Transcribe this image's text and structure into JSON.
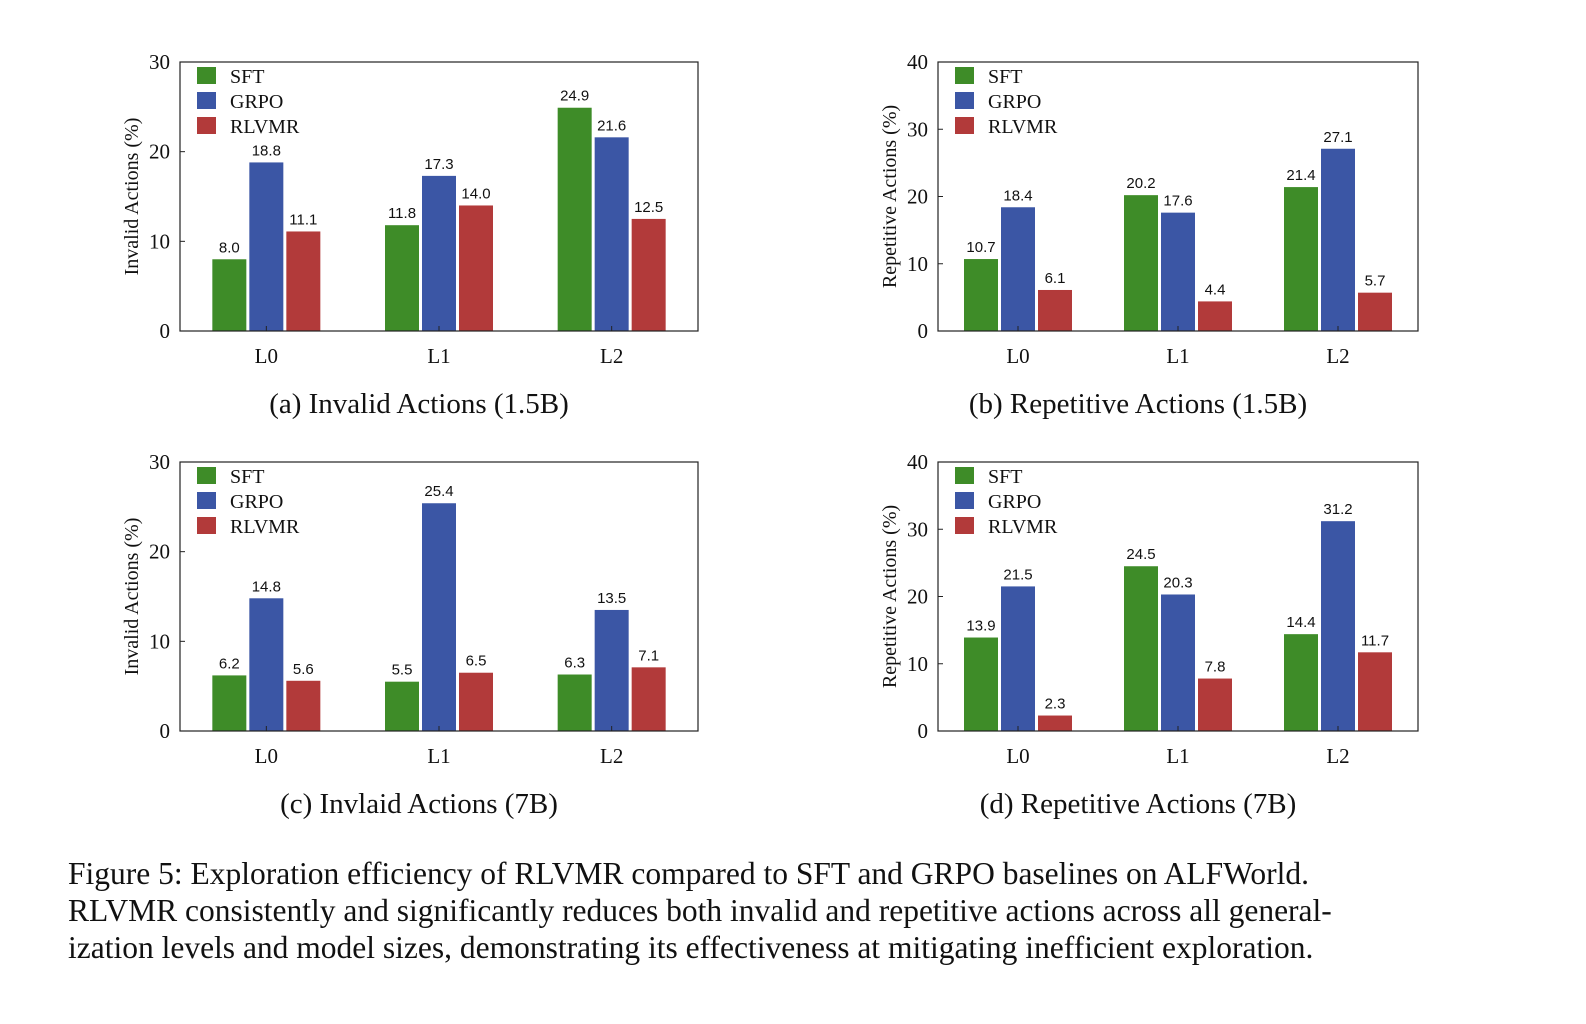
{
  "colors": {
    "SFT": "#3e8c28",
    "GRPO": "#3b56a5",
    "RLVMR": "#b23a3a"
  },
  "chart_data": [
    {
      "type": "bar",
      "categories": [
        "L0",
        "L1",
        "L2"
      ],
      "series": [
        {
          "name": "SFT",
          "values": [
            8.0,
            11.8,
            24.9
          ]
        },
        {
          "name": "GRPO",
          "values": [
            18.8,
            17.3,
            21.6
          ]
        },
        {
          "name": "RLVMR",
          "values": [
            11.1,
            14.0,
            12.5
          ]
        }
      ],
      "value_labels": [
        [
          "8.0",
          "11.8",
          "24.9"
        ],
        [
          "18.8",
          "17.3",
          "21.6"
        ],
        [
          "11.1",
          "14.0",
          "12.5"
        ]
      ],
      "ylabel": "Invalid Actions (%)",
      "ylim": [
        0,
        30
      ],
      "yticks": [
        "0",
        "10",
        "20",
        "30"
      ],
      "legend": "top-left",
      "caption": "(a) Invalid Actions (1.5B)"
    },
    {
      "type": "bar",
      "categories": [
        "L0",
        "L1",
        "L2"
      ],
      "series": [
        {
          "name": "SFT",
          "values": [
            10.7,
            20.2,
            21.4
          ]
        },
        {
          "name": "GRPO",
          "values": [
            18.4,
            17.6,
            27.1
          ]
        },
        {
          "name": "RLVMR",
          "values": [
            6.1,
            4.4,
            5.7
          ]
        }
      ],
      "value_labels": [
        [
          "10.7",
          "20.2",
          "21.4"
        ],
        [
          "18.4",
          "17.6",
          "27.1"
        ],
        [
          "6.1",
          "4.4",
          "5.7"
        ]
      ],
      "ylabel": "Repetitive Actions (%)",
      "ylim": [
        0,
        40
      ],
      "yticks": [
        "0",
        "10",
        "20",
        "30",
        "40"
      ],
      "legend": "top-left",
      "caption": "(b) Repetitive Actions (1.5B)"
    },
    {
      "type": "bar",
      "categories": [
        "L0",
        "L1",
        "L2"
      ],
      "series": [
        {
          "name": "SFT",
          "values": [
            6.2,
            5.5,
            6.3
          ]
        },
        {
          "name": "GRPO",
          "values": [
            14.8,
            25.4,
            13.5
          ]
        },
        {
          "name": "RLVMR",
          "values": [
            5.6,
            6.5,
            7.1
          ]
        }
      ],
      "value_labels": [
        [
          "6.2",
          "5.5",
          "6.3"
        ],
        [
          "14.8",
          "25.4",
          "13.5"
        ],
        [
          "5.6",
          "6.5",
          "7.1"
        ]
      ],
      "ylabel": "Invalid Actions (%)",
      "ylim": [
        0,
        30
      ],
      "yticks": [
        "0",
        "10",
        "20",
        "30"
      ],
      "legend": "top-left",
      "caption": "(c) Invlaid Actions (7B)"
    },
    {
      "type": "bar",
      "categories": [
        "L0",
        "L1",
        "L2"
      ],
      "series": [
        {
          "name": "SFT",
          "values": [
            13.9,
            24.5,
            14.4
          ]
        },
        {
          "name": "GRPO",
          "values": [
            21.5,
            20.3,
            31.2
          ]
        },
        {
          "name": "RLVMR",
          "values": [
            2.3,
            7.8,
            11.7
          ]
        }
      ],
      "value_labels": [
        [
          "13.9",
          "24.5",
          "14.4"
        ],
        [
          "21.5",
          "20.3",
          "31.2"
        ],
        [
          "2.3",
          "7.8",
          "11.7"
        ]
      ],
      "ylabel": "Repetitive Actions (%)",
      "ylim": [
        0,
        40
      ],
      "yticks": [
        "0",
        "10",
        "20",
        "30",
        "40"
      ],
      "legend": "top-left",
      "caption": "(d) Repetitive Actions (7B)"
    }
  ],
  "figure_caption": {
    "line1": "Figure 5: Exploration efficiency of RLVMR compared to SFT and GRPO baselines on ALFWorld.",
    "line2": "RLVMR consistently and significantly reduces both invalid and repetitive actions across all general-",
    "line3": "ization levels and model sizes, demonstrating its effectiveness at mitigating inefficient exploration."
  }
}
